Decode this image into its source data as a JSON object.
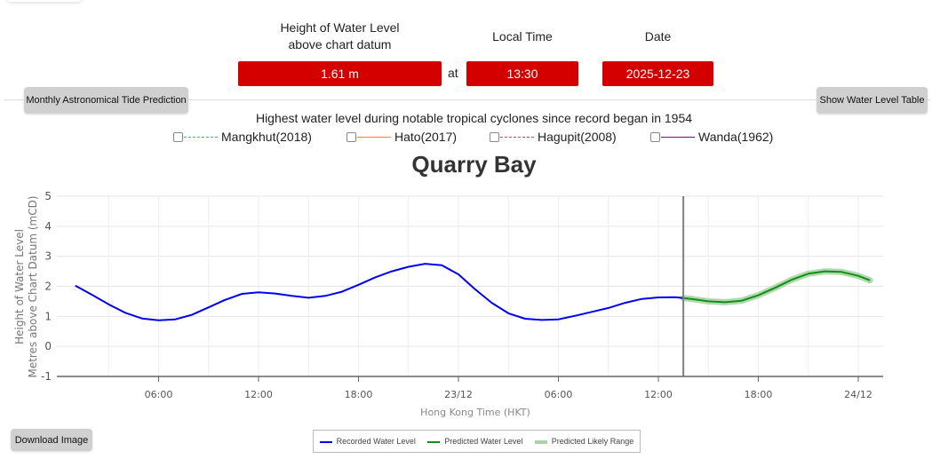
{
  "header": {
    "water_level_label_line1": "Height of Water Level",
    "water_level_label_line2": "above chart datum",
    "local_time_label": "Local Time",
    "date_label": "Date",
    "water_level_value": "1.61 m",
    "at_text": "at",
    "local_time_value": "13:30",
    "date_value": "2025-12-23"
  },
  "buttons": {
    "monthly_prediction": "Monthly Astronomical Tide Prediction",
    "show_table": "Show Water Level Table",
    "download_image": "Download Image"
  },
  "cyclones": {
    "title": "Highest water level during notable tropical cyclones since record began in 1954",
    "items": [
      {
        "label": "Mangkhut(2018)",
        "color": "#20c0c0",
        "style": "dashed",
        "checked": false
      },
      {
        "label": "Hato(2017)",
        "color": "#ff8c00",
        "style": "solid",
        "checked": false
      },
      {
        "label": "Hagupit(2008)",
        "color": "#e0405a",
        "style": "dashed",
        "checked": false
      },
      {
        "label": "Wanda(1962)",
        "color": "#8b008b",
        "style": "solid",
        "checked": false
      }
    ]
  },
  "chart": {
    "title": "Quarry Bay",
    "ylabel_line1": "Height of Water Level",
    "ylabel_line2": "Metres above Chart Datum (mCD)",
    "xlabel": "Hong Kong Time (HKT)",
    "yticks": [
      "5",
      "4",
      "3",
      "2",
      "1",
      "0",
      "-1"
    ],
    "xticks": [
      "06:00",
      "12:00",
      "18:00",
      "23/12",
      "06:00",
      "12:00",
      "18:00",
      "24/12"
    ],
    "legend": {
      "recorded": "Recorded Water Level",
      "predicted": "Predicted Water Level",
      "range": "Predicted Likely Range"
    },
    "colors": {
      "recorded": "#0000ee",
      "predicted": "#109010",
      "range": "#a8d4a8",
      "now_line": "#808080"
    }
  },
  "chart_data": {
    "type": "line",
    "title": "Quarry Bay",
    "xlabel": "Hong Kong Time (HKT)",
    "ylabel": "Height of Water Level Metres above Chart Datum (mCD)",
    "ylim": [
      -1,
      5
    ],
    "xlim_hours_from_22_12_00_00": [
      0,
      49.5
    ],
    "grid": true,
    "legend_position": "bottom",
    "current_time_marker": "23/12 13:30",
    "series": [
      {
        "name": "Recorded Water Level",
        "x_hours": [
          1,
          2,
          3,
          4,
          5,
          6,
          7,
          8,
          9,
          10,
          11,
          12,
          13,
          14,
          15,
          16,
          17,
          18,
          19,
          20,
          21,
          22,
          23,
          24,
          25,
          26,
          27,
          28,
          29,
          30,
          31,
          32,
          33,
          34,
          35,
          36,
          37,
          37.5
        ],
        "values": [
          2.02,
          1.72,
          1.4,
          1.12,
          0.93,
          0.87,
          0.9,
          1.05,
          1.3,
          1.55,
          1.75,
          1.8,
          1.76,
          1.68,
          1.62,
          1.68,
          1.82,
          2.05,
          2.3,
          2.5,
          2.65,
          2.75,
          2.7,
          2.4,
          1.9,
          1.45,
          1.1,
          0.92,
          0.88,
          0.9,
          1.02,
          1.15,
          1.28,
          1.45,
          1.58,
          1.63,
          1.64,
          1.61
        ]
      },
      {
        "name": "Predicted Water Level",
        "x_hours": [
          37.5,
          38,
          39,
          40,
          41,
          42,
          43,
          44,
          45,
          46,
          47,
          48,
          48.7
        ],
        "values": [
          1.61,
          1.58,
          1.5,
          1.47,
          1.52,
          1.7,
          1.95,
          2.22,
          2.42,
          2.5,
          2.48,
          2.35,
          2.2
        ]
      },
      {
        "name": "Predicted Likely Range",
        "x_hours": [
          37.5,
          48.7
        ],
        "band_halfwidth": 0.05
      }
    ]
  }
}
